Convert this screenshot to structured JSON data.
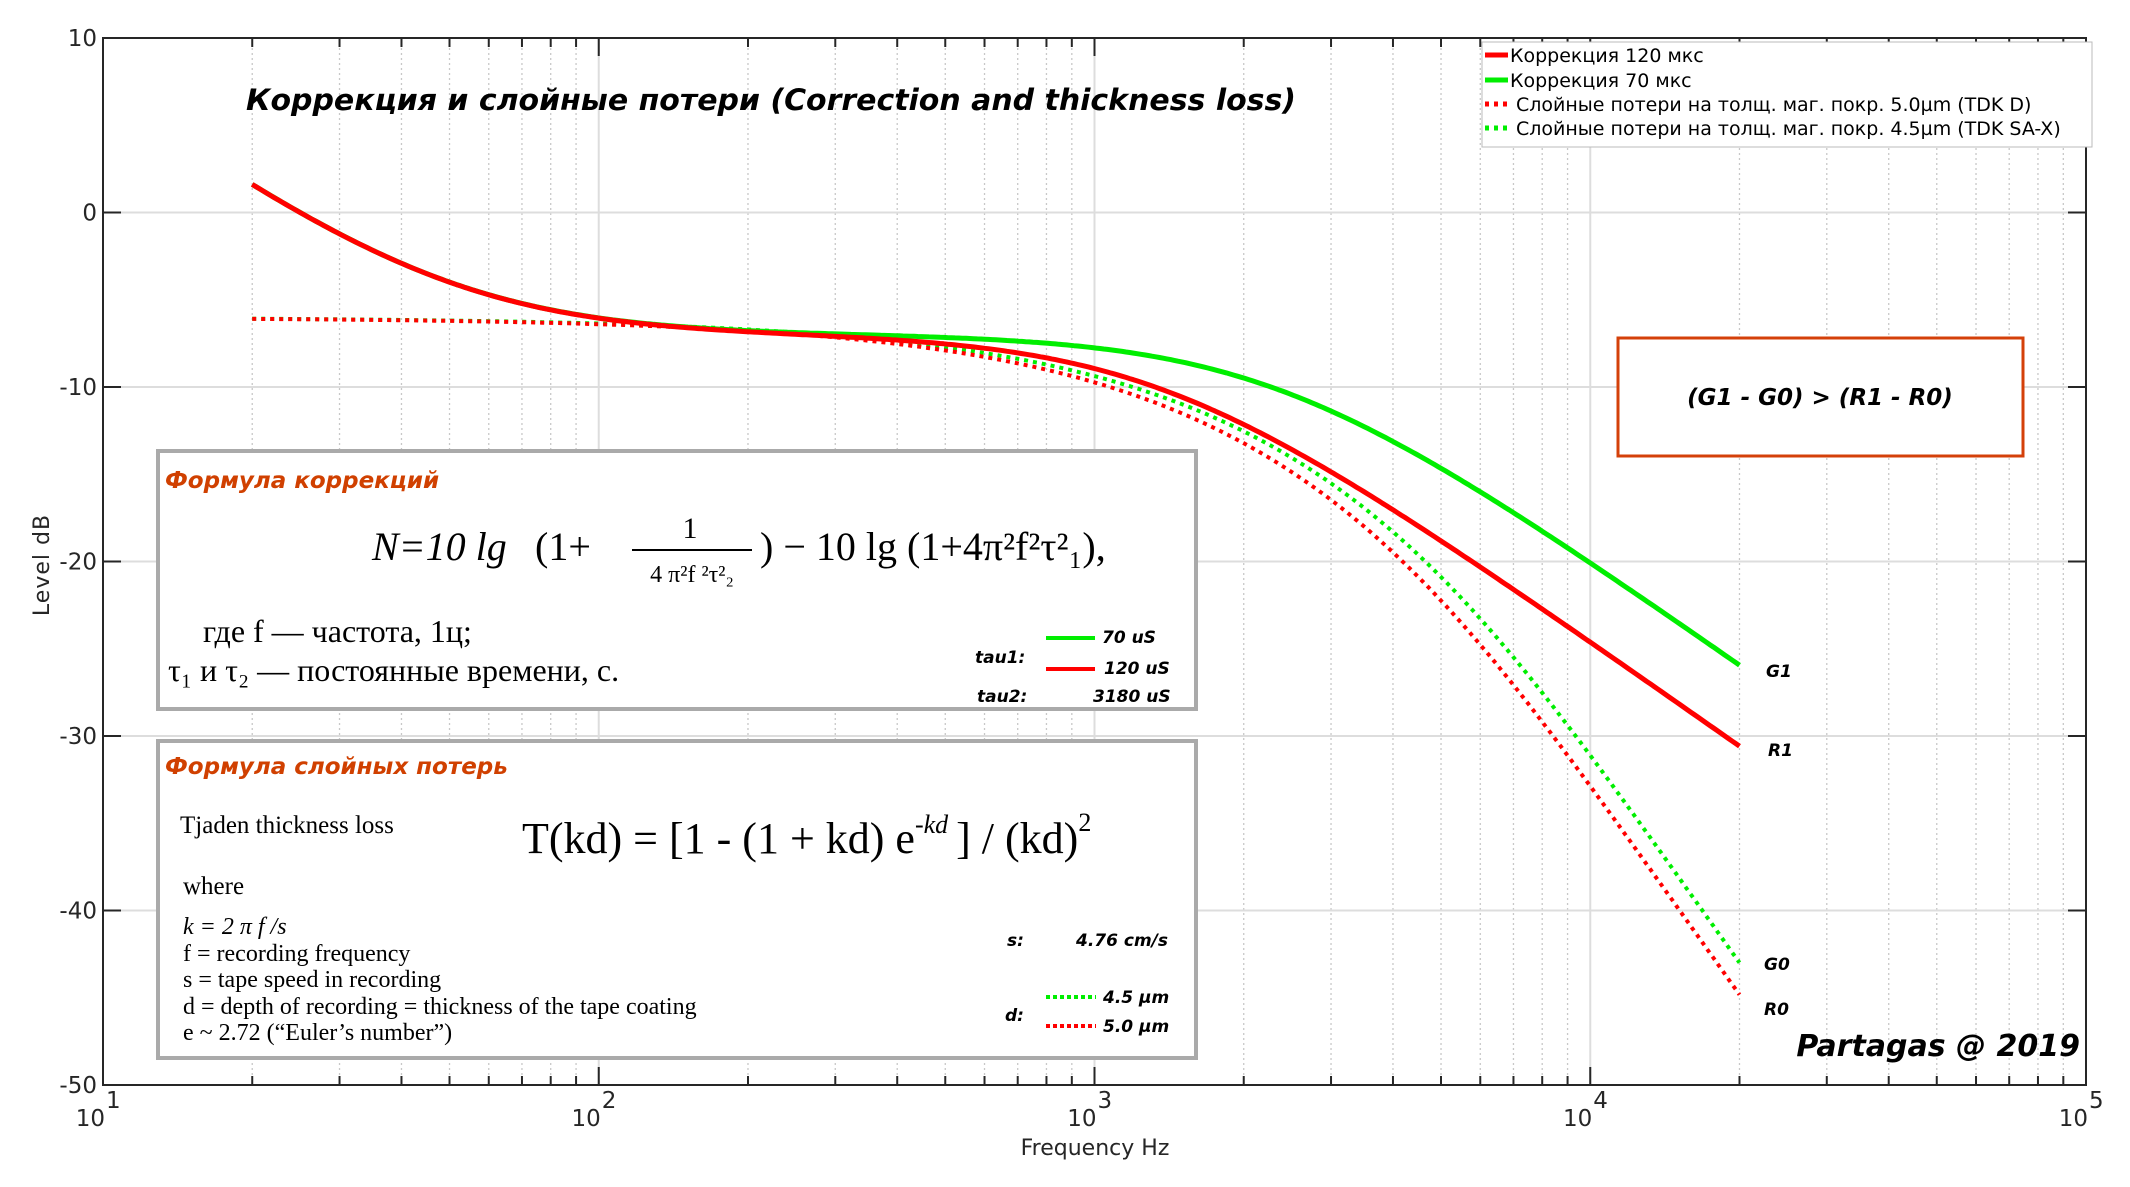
{
  "chart_data": {
    "type": "line",
    "title": "Коррекция и слойные потери (Correction and thickness loss)",
    "xlabel": "Frequency Hz",
    "ylabel": "Level dB",
    "xscale": "log",
    "xlim": [
      10,
      100000
    ],
    "ylim": [
      -50,
      10
    ],
    "x_ticks": [
      {
        "value": 10,
        "base": "10",
        "exp": "1"
      },
      {
        "value": 100,
        "base": "10",
        "exp": "2"
      },
      {
        "value": 1000,
        "base": "10",
        "exp": "3"
      },
      {
        "value": 10000,
        "base": "10",
        "exp": "4"
      },
      {
        "value": 100000,
        "base": "10",
        "exp": "5"
      }
    ],
    "y_ticks": [
      "10",
      "0",
      "-10",
      "-20",
      "-30",
      "-40",
      "-50"
    ],
    "y_tick_values": [
      10,
      0,
      -10,
      -20,
      -30,
      -40,
      -50
    ],
    "grid": true,
    "legend_position": "top-right",
    "x_range_hz": [
      20,
      20000
    ],
    "series": [
      {
        "name": "Коррекция 120 мкс",
        "color": "#ff0000",
        "style": "solid",
        "kind": "correction",
        "tau1_us": 120,
        "tau2_us": 3180,
        "offset_db": -7,
        "end_value": -30.6,
        "end_label": "R1"
      },
      {
        "name": "Коррекция 70 мкс",
        "color": "#00ee00",
        "style": "solid",
        "kind": "correction",
        "tau1_us": 70,
        "tau2_us": 3180,
        "offset_db": -7,
        "end_value": -25.9,
        "end_label": "G1"
      },
      {
        "name": "Слойные потери на толщ. маг. покр. 5.0µm (TDK D)",
        "color": "#ff0000",
        "style": "dotted",
        "kind": "thickness",
        "d_um": 5.0,
        "s_cm_s": 4.76,
        "start_value": -6.0,
        "end_value": -44.8,
        "end_label": "R0"
      },
      {
        "name": "Слойные потери на толщ. маг. покр. 4.5µm (TDK SA-X)",
        "color": "#00ee00",
        "style": "dotted",
        "kind": "thickness",
        "d_um": 4.5,
        "s_cm_s": 4.76,
        "start_value": -6.0,
        "end_value": -43.0,
        "end_label": "G0"
      }
    ],
    "annotations": {
      "comparison": "(G1 - G0) > (R1 - R0)",
      "signature": "Partagas @ 2019"
    }
  },
  "correction_box": {
    "title": "Формула коррекций",
    "formula_lhs": "N=10 lg",
    "formula_one_plus": "(1+",
    "formula_num": "1",
    "formula_den": "4 π²f ²τ²₂",
    "formula_rest": ") − 10 lg (1+4π²f²τ²₁),",
    "where_line1": "где  f — частота, 1ц;",
    "where_line2": "τ₁  и  τ₂ — постоянные времени, с.",
    "tau1_label": "tau1:",
    "tau1_values": [
      "70 uS",
      "120 uS"
    ],
    "tau2_label": "tau2:",
    "tau2_value": "3180 uS",
    "colors": {
      "green": "#00ee00",
      "red": "#ff0000",
      "title": "#d04000",
      "border": "#aaaaaa"
    }
  },
  "thickness_box": {
    "title": "Формула слойных потерь",
    "name": "Tjaden  thickness  loss",
    "formula": "T(kd) = [1 - (1 + kd) e",
    "formula_exp": "-kd",
    "formula_tail": "] / (kd)",
    "formula_tail_exp": "2",
    "where": "where",
    "defs": [
      "k = 2 π f /s",
      "f  = recording frequency",
      "s = tape speed in recording",
      "d = depth of recording = thickness of the tape coating",
      "e  ~ 2.72 (“Euler’s number”)"
    ],
    "s_label": "s:",
    "s_value": "4.76 cm/s",
    "d_label": "d:",
    "d_values": [
      "4.5 µm",
      "5.0 µm"
    ]
  },
  "colors": {
    "annotation_border": "#d4400a",
    "axis": "#262626",
    "grid": "#dddddd"
  }
}
